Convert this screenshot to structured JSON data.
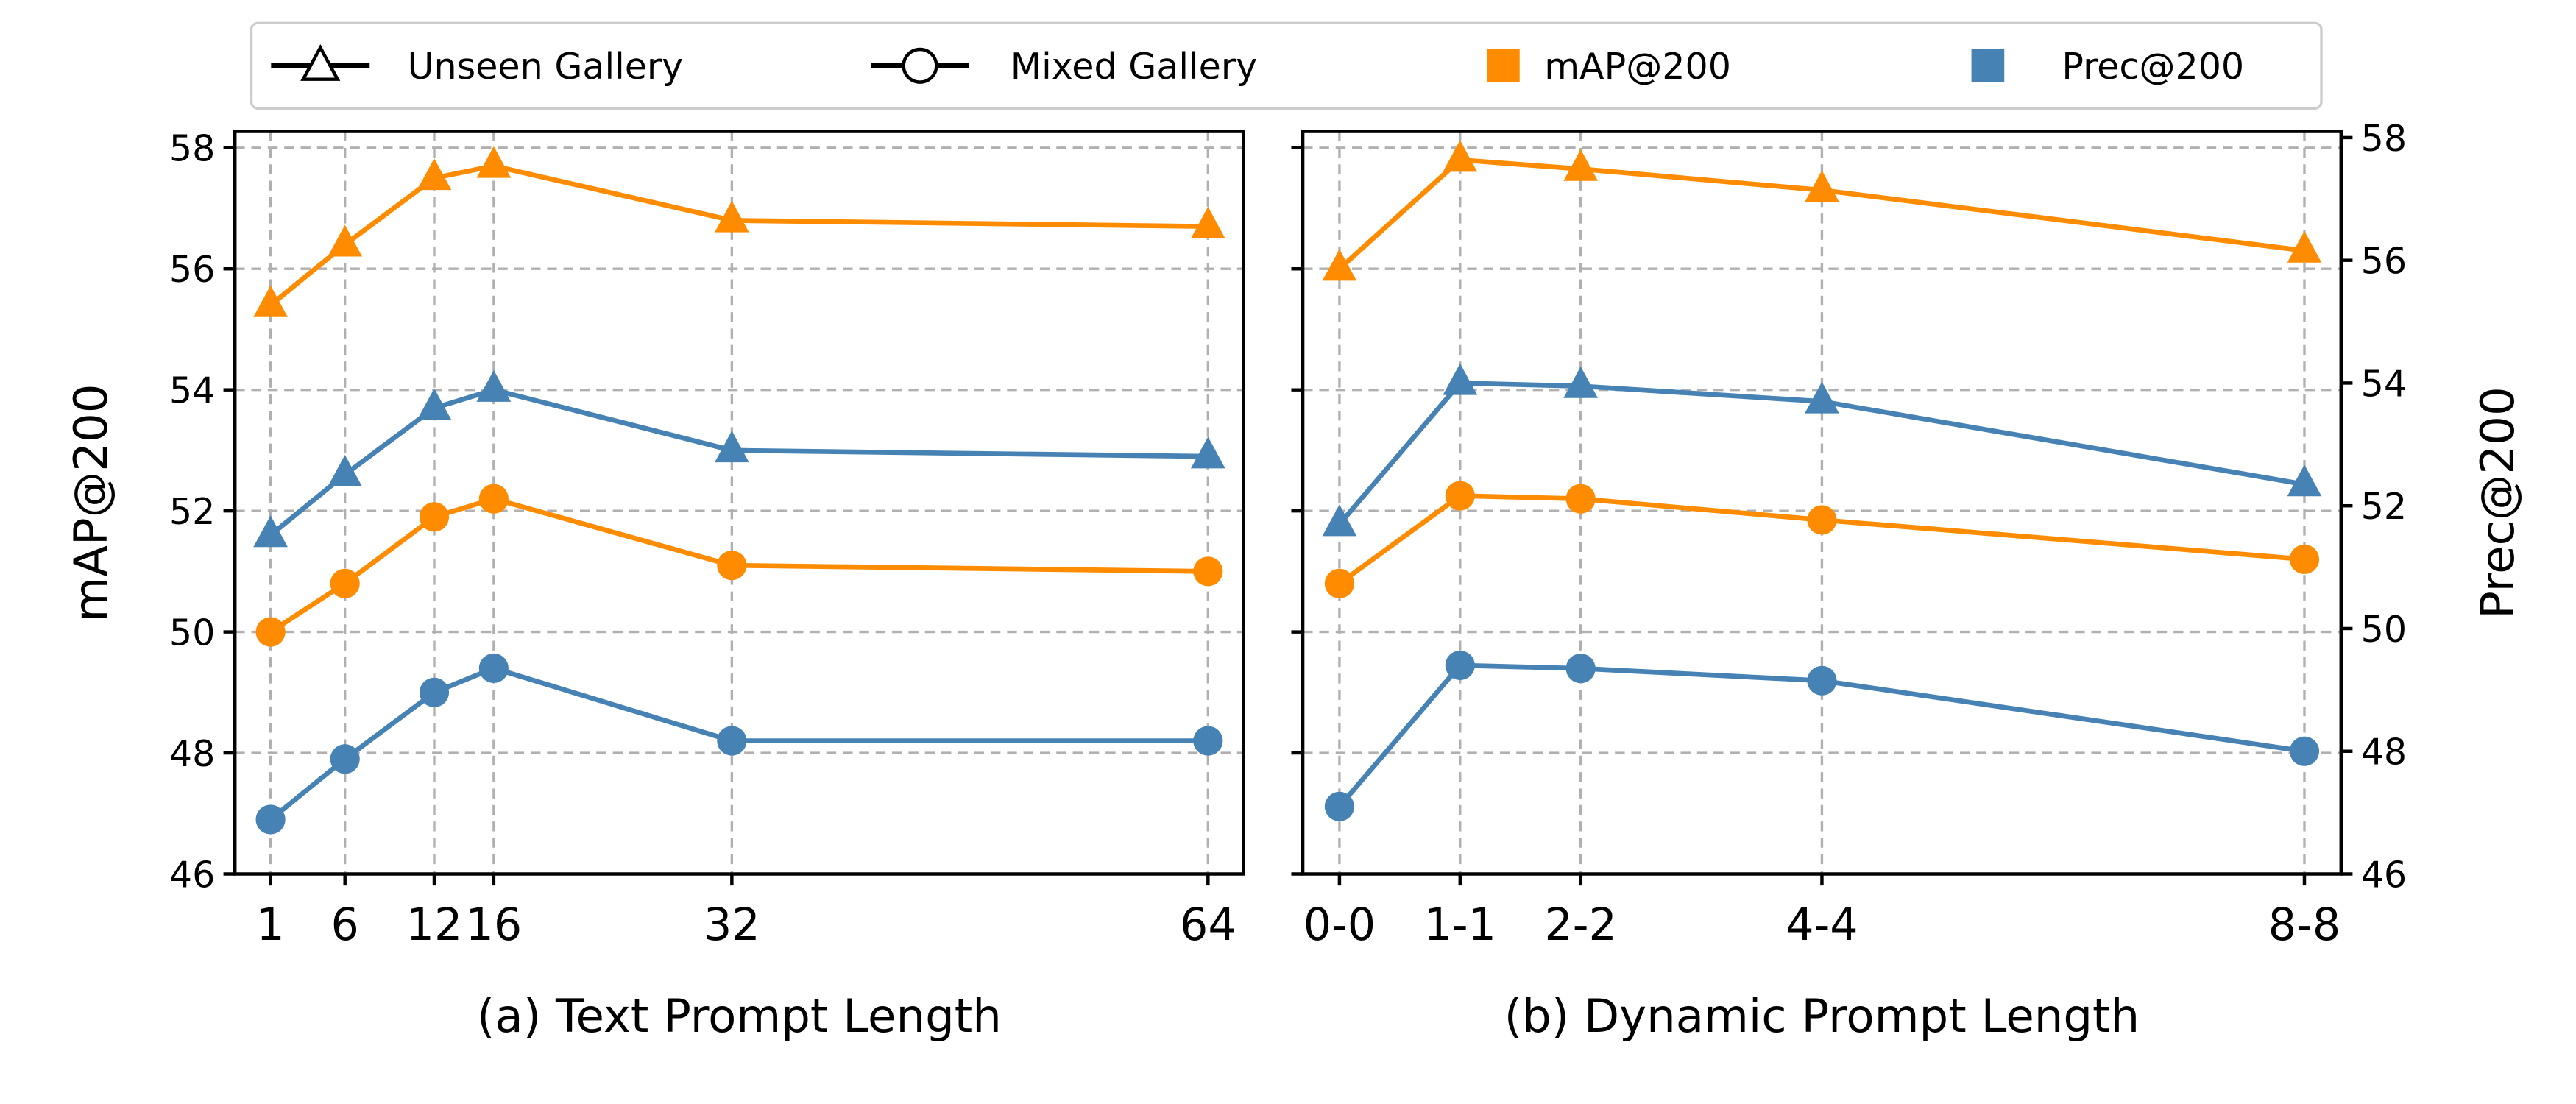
{
  "colors": {
    "map": "#ff8c00",
    "prec": "#4682b4",
    "grid": "#b0b0b0",
    "legend_border": "#cccccc"
  },
  "legend": {
    "placement": "top-center",
    "entries": [
      {
        "label": "Unseen Gallery",
        "marker": "triangle-open-line"
      },
      {
        "label": "Mixed Gallery",
        "marker": "circle-open-line"
      },
      {
        "label": "mAP@200",
        "marker": "square",
        "color": "#ff8c00"
      },
      {
        "label": "Prec@200",
        "marker": "square",
        "color": "#4682b4"
      }
    ]
  },
  "chart_data": [
    {
      "type": "line",
      "xlabel": "(a) Text Prompt Length",
      "ylabel": "mAP@200",
      "x": [
        1,
        6,
        12,
        16,
        32,
        64
      ],
      "xtick_labels": [
        "1",
        "6",
        "12",
        "16",
        "32",
        "64"
      ],
      "ylim": [
        46,
        58.27
      ],
      "yticks": [
        46,
        48,
        50,
        52,
        54,
        56,
        58
      ],
      "grid": true,
      "series": [
        {
          "metric": "mAP@200",
          "gallery": "Unseen Gallery",
          "marker": "triangle",
          "color": "#ff8c00",
          "values": [
            55.4,
            56.4,
            57.5,
            57.7,
            56.8,
            56.7
          ]
        },
        {
          "metric": "Prec@200",
          "gallery": "Unseen Gallery",
          "marker": "triangle",
          "color": "#4682b4",
          "values": [
            51.6,
            52.6,
            53.7,
            54.0,
            53.0,
            52.9
          ]
        },
        {
          "metric": "mAP@200",
          "gallery": "Mixed Gallery",
          "marker": "circle",
          "color": "#ff8c00",
          "values": [
            50.0,
            50.8,
            51.9,
            52.2,
            51.1,
            51.0
          ]
        },
        {
          "metric": "Prec@200",
          "gallery": "Mixed Gallery",
          "marker": "circle",
          "color": "#4682b4",
          "values": [
            46.9,
            47.9,
            49.0,
            49.4,
            48.2,
            48.2
          ]
        }
      ]
    },
    {
      "type": "line",
      "xlabel": "(b) Dynamic Prompt Length",
      "ylabel_right": "Prec@200",
      "x": [
        0,
        1,
        2,
        4,
        8
      ],
      "xtick_labels": [
        "0-0",
        "1-1",
        "2-2",
        "4-4",
        "8-8"
      ],
      "ylim": [
        46,
        58.27
      ],
      "ylim_right": [
        46,
        58.1
      ],
      "yticks": [
        46,
        48,
        50,
        52,
        54,
        56,
        58
      ],
      "yticks_right": [
        46,
        48,
        50,
        52,
        54,
        56,
        58
      ],
      "grid": true,
      "series": [
        {
          "metric": "mAP@200",
          "gallery": "Unseen Gallery",
          "marker": "triangle",
          "color": "#ff8c00",
          "axis": "left",
          "values": [
            56.0,
            57.8,
            57.65,
            57.3,
            56.3
          ]
        },
        {
          "metric": "Prec@200",
          "gallery": "Unseen Gallery",
          "marker": "triangle",
          "color": "#4682b4",
          "axis": "right",
          "values": [
            51.7,
            54.0,
            53.95,
            53.7,
            52.35
          ]
        },
        {
          "metric": "mAP@200",
          "gallery": "Mixed Gallery",
          "marker": "circle",
          "color": "#ff8c00",
          "axis": "left",
          "values": [
            50.8,
            52.25,
            52.2,
            51.85,
            51.2
          ]
        },
        {
          "metric": "Prec@200",
          "gallery": "Mixed Gallery",
          "marker": "circle",
          "color": "#4682b4",
          "axis": "right",
          "values": [
            47.1,
            49.4,
            49.35,
            49.15,
            48.0
          ]
        }
      ]
    }
  ]
}
